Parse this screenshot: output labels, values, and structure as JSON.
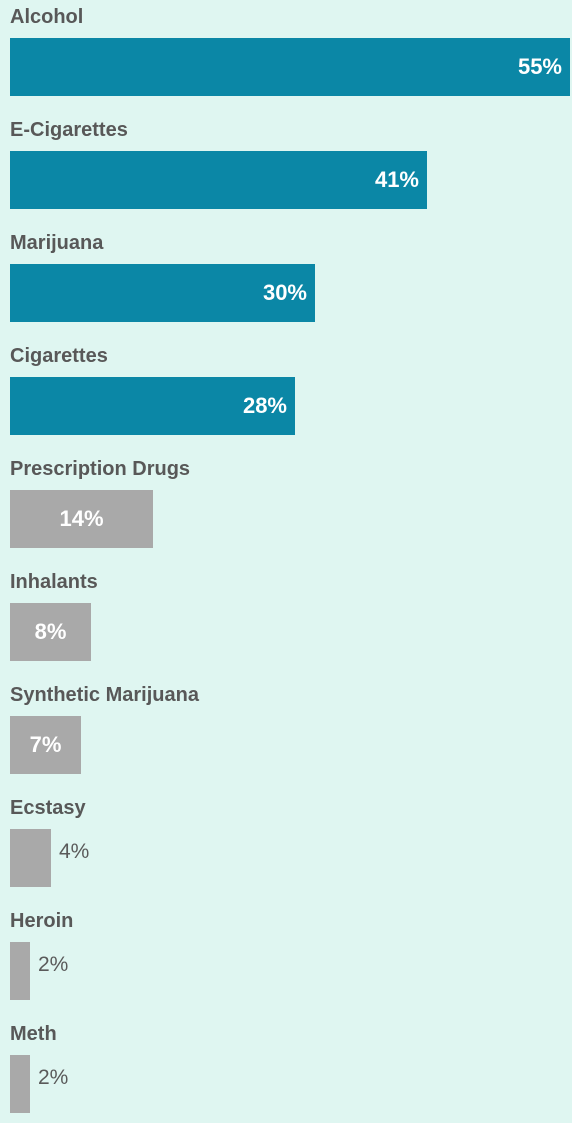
{
  "chart_data": {
    "type": "bar",
    "orientation": "horizontal",
    "categories": [
      "Alcohol",
      "E-Cigarettes",
      "Marijuana",
      "Cigarettes",
      "Prescription Drugs",
      "Inhalants",
      "Synthetic Marijuana",
      "Ecstasy",
      "Heroin",
      "Meth"
    ],
    "values": [
      55,
      41,
      30,
      28,
      14,
      8,
      7,
      4,
      2,
      2
    ],
    "data_labels": [
      "55%",
      "41%",
      "30%",
      "28%",
      "14%",
      "8%",
      "7%",
      "4%",
      "2%",
      "2%"
    ],
    "unit": "%",
    "xlim": [
      0,
      55
    ],
    "grid": false,
    "legend": "none",
    "colors": {
      "background": "#dff6f1",
      "highlight_bar": "#0b87a6",
      "other_bar": "#a9a9a9",
      "label_text": "#585858"
    },
    "highlighted_categories": [
      "Alcohol",
      "E-Cigarettes",
      "Marijuana",
      "Cigarettes"
    ]
  }
}
